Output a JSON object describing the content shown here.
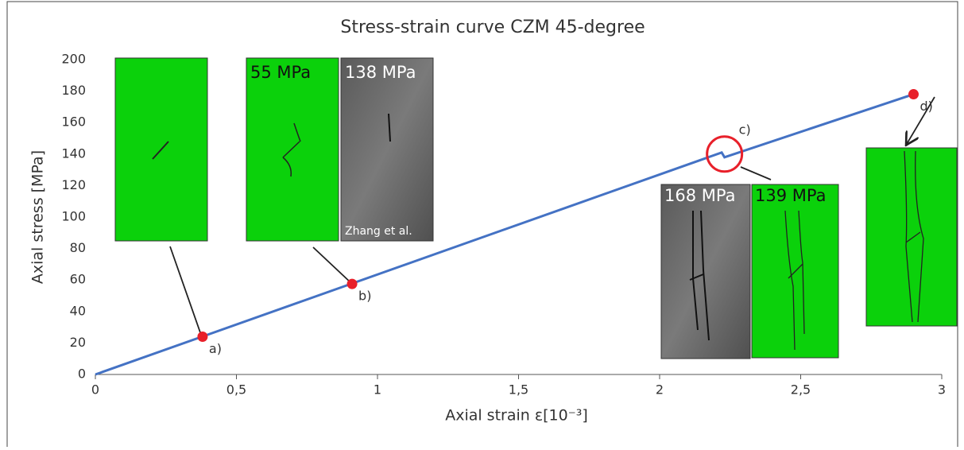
{
  "chart_data": {
    "type": "line",
    "title": "Stress-strain curve CZM 45-degree",
    "xlabel": "Axial strain ε[10⁻³]",
    "ylabel": "Axial stress [MPa]",
    "x": [
      0,
      2.22,
      2.23,
      2.9
    ],
    "values": [
      0,
      141,
      138,
      178
    ],
    "color": "#4472c4",
    "xlim": [
      0,
      3
    ],
    "ylim": [
      0,
      200
    ],
    "xticks": [
      0,
      {
        "value": 0.5,
        "label": "0,5"
      },
      1,
      {
        "value": 1.5,
        "label": "1,5"
      },
      2,
      {
        "value": 2.5,
        "label": "2,5"
      },
      3
    ],
    "yticks": [
      0,
      20,
      40,
      60,
      80,
      100,
      120,
      140,
      160,
      180,
      200
    ],
    "grid": false,
    "markers": {
      "x": [
        0.38,
        0.91,
        2.9
      ],
      "y": [
        24,
        57.5,
        178
      ],
      "labels": [
        "a)",
        "b)",
        "d)"
      ],
      "color": "#e8202a"
    },
    "circle": {
      "x": 2.23,
      "y": 140,
      "label": "c)",
      "color": "#e8202a"
    },
    "insets": [
      "55 MPa",
      "138 MPa",
      "Zhang et al.",
      "168 MPa",
      "139 MPa"
    ]
  }
}
